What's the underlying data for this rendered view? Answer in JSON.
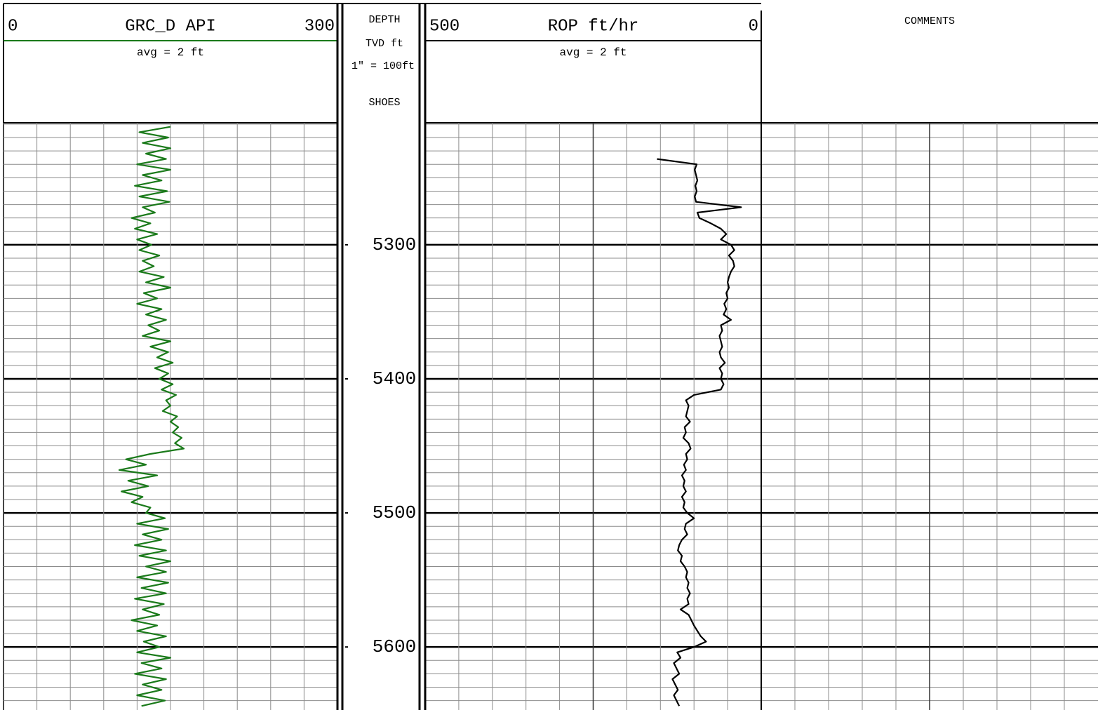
{
  "depth_axis": {
    "title": "DEPTH",
    "units": "TVD ft",
    "scale": "1\" = 100ft",
    "shoes": "SHOES",
    "lim": [
      5209,
      5647
    ],
    "major_ticks": [
      5300,
      5400,
      5500,
      5600
    ],
    "minor_ticks": [
      5210,
      5220,
      5230,
      5240,
      5250,
      5260,
      5270,
      5280,
      5290,
      5310,
      5320,
      5330,
      5340,
      5350,
      5360,
      5370,
      5380,
      5390,
      5410,
      5420,
      5430,
      5440,
      5450,
      5460,
      5470,
      5480,
      5490,
      5510,
      5520,
      5530,
      5540,
      5550,
      5560,
      5570,
      5580,
      5590,
      5610,
      5620,
      5630,
      5640
    ]
  },
  "chart_data": [
    {
      "type": "line",
      "title": "GRC_D API",
      "subtitle": "avg = 2 ft",
      "color": "#1a7a1a",
      "ylim": [
        0,
        300
      ],
      "yticks": [
        0,
        30,
        60,
        90,
        120,
        150,
        180,
        210,
        240,
        270,
        300
      ],
      "x": [
        5212,
        5216,
        5220,
        5224,
        5228,
        5232,
        5236,
        5240,
        5244,
        5248,
        5252,
        5256,
        5260,
        5264,
        5268,
        5272,
        5276,
        5280,
        5284,
        5288,
        5292,
        5296,
        5300,
        5304,
        5308,
        5312,
        5316,
        5320,
        5324,
        5328,
        5332,
        5336,
        5340,
        5344,
        5348,
        5352,
        5356,
        5360,
        5364,
        5368,
        5372,
        5376,
        5380,
        5384,
        5388,
        5392,
        5396,
        5400,
        5404,
        5408,
        5412,
        5416,
        5420,
        5424,
        5428,
        5432,
        5436,
        5440,
        5444,
        5448,
        5452,
        5456,
        5460,
        5464,
        5468,
        5472,
        5476,
        5480,
        5484,
        5488,
        5492,
        5496,
        5500,
        5504,
        5508,
        5512,
        5516,
        5520,
        5524,
        5528,
        5532,
        5536,
        5540,
        5544,
        5548,
        5552,
        5556,
        5560,
        5564,
        5568,
        5572,
        5576,
        5580,
        5584,
        5588,
        5592,
        5596,
        5600,
        5604,
        5608,
        5612,
        5616,
        5620,
        5624,
        5628,
        5632,
        5636,
        5640,
        5644
      ],
      "values": [
        150,
        122,
        148,
        125,
        150,
        128,
        146,
        120,
        150,
        125,
        142,
        118,
        147,
        122,
        149,
        125,
        136,
        115,
        132,
        118,
        138,
        120,
        133,
        122,
        140,
        125,
        135,
        122,
        144,
        128,
        150,
        126,
        138,
        120,
        142,
        128,
        146,
        130,
        140,
        125,
        150,
        132,
        148,
        138,
        152,
        136,
        148,
        140,
        152,
        142,
        155,
        146,
        150,
        143,
        156,
        150,
        157,
        152,
        160,
        154,
        162,
        132,
        110,
        128,
        104,
        138,
        112,
        130,
        106,
        125,
        115,
        132,
        128,
        145,
        120,
        148,
        125,
        142,
        118,
        146,
        122,
        150,
        128,
        146,
        120,
        148,
        124,
        146,
        118,
        144,
        125,
        140,
        115,
        138,
        120,
        146,
        126,
        140,
        120,
        150,
        124,
        142,
        118,
        146,
        125,
        142,
        120,
        145,
        124
      ]
    },
    {
      "type": "line",
      "title": "ROP ft/hr",
      "subtitle": "avg = 2 ft",
      "color": "#000000",
      "ylim": [
        500,
        0
      ],
      "yticks": [
        500,
        450,
        400,
        350,
        300,
        250,
        200,
        150,
        100,
        50,
        0
      ],
      "x": [
        5236,
        5240,
        5244,
        5248,
        5252,
        5256,
        5260,
        5264,
        5268,
        5272,
        5276,
        5280,
        5284,
        5288,
        5292,
        5296,
        5300,
        5304,
        5308,
        5312,
        5316,
        5320,
        5324,
        5328,
        5332,
        5336,
        5340,
        5344,
        5348,
        5352,
        5356,
        5360,
        5364,
        5368,
        5372,
        5376,
        5380,
        5384,
        5388,
        5392,
        5396,
        5400,
        5404,
        5408,
        5412,
        5416,
        5420,
        5424,
        5428,
        5432,
        5436,
        5440,
        5444,
        5448,
        5452,
        5456,
        5460,
        5464,
        5468,
        5472,
        5476,
        5480,
        5484,
        5488,
        5492,
        5496,
        5500,
        5504,
        5508,
        5512,
        5516,
        5520,
        5524,
        5528,
        5532,
        5536,
        5540,
        5544,
        5548,
        5552,
        5556,
        5560,
        5564,
        5568,
        5572,
        5576,
        5580,
        5584,
        5588,
        5592,
        5596,
        5600,
        5604,
        5608,
        5612,
        5616,
        5620,
        5624,
        5628,
        5632,
        5636,
        5640,
        5644
      ],
      "values": [
        155,
        96,
        99,
        97,
        95,
        98,
        96,
        99,
        97,
        30,
        95,
        92,
        75,
        60,
        52,
        60,
        45,
        40,
        48,
        42,
        40,
        45,
        48,
        50,
        48,
        52,
        50,
        55,
        52,
        56,
        45,
        60,
        58,
        62,
        60,
        58,
        62,
        60,
        54,
        62,
        58,
        60,
        56,
        60,
        100,
        112,
        108,
        110,
        112,
        106,
        114,
        112,
        116,
        108,
        105,
        112,
        110,
        115,
        112,
        118,
        114,
        116,
        112,
        118,
        114,
        116,
        110,
        100,
        112,
        114,
        110,
        118,
        122,
        124,
        118,
        120,
        114,
        110,
        112,
        108,
        110,
        106,
        110,
        108,
        120,
        108,
        104,
        100,
        95,
        90,
        82,
        100,
        125,
        120,
        130,
        126,
        122,
        132,
        128,
        124,
        130,
        126,
        122
      ]
    }
  ],
  "comments": {
    "title": "COMMENTS"
  }
}
